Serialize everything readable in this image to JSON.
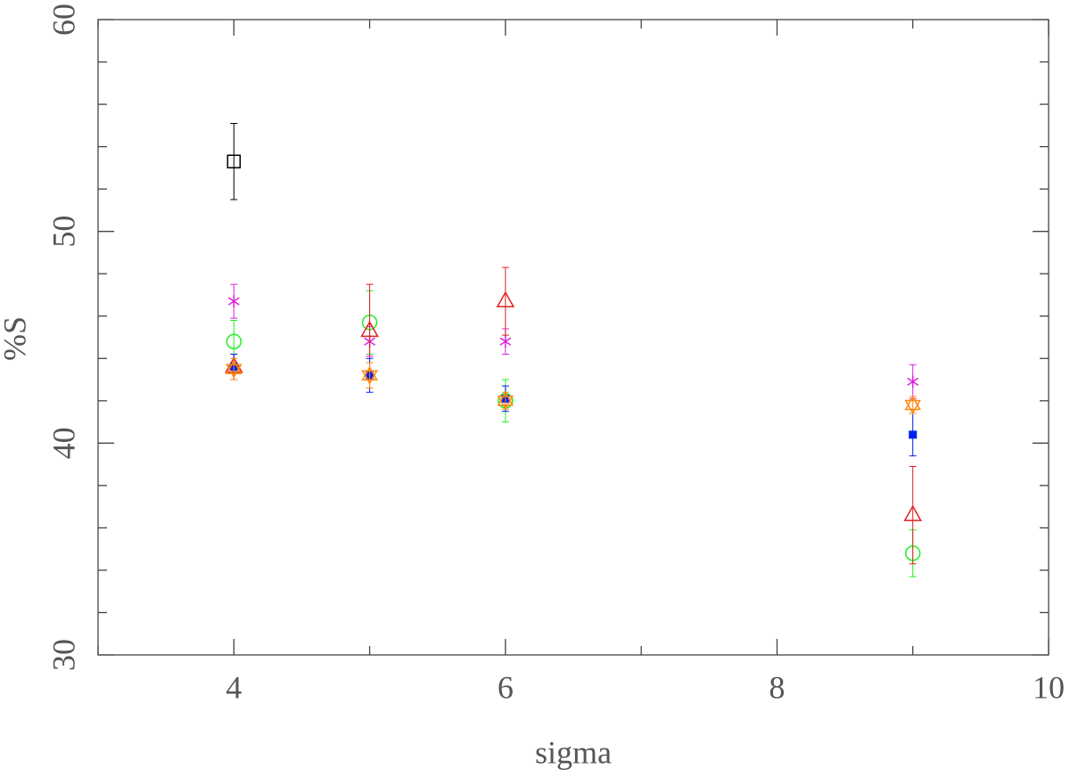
{
  "chart_data": {
    "type": "scatter",
    "x_label": "sigma",
    "y_label": "%S",
    "xlim": [
      3,
      10
    ],
    "xticks": [
      4,
      6,
      8,
      10
    ],
    "xminorticks": [
      3,
      5,
      7,
      9
    ],
    "ylim": [
      30,
      60
    ],
    "yticks": [
      30,
      40,
      50,
      60
    ],
    "yminorticks": [
      32,
      34,
      36,
      38,
      42,
      44,
      46,
      48,
      52,
      54,
      56,
      58
    ],
    "series": [
      {
        "color": "#000000",
        "marker": "open-square",
        "x": [
          4
        ],
        "values": [
          53.3
        ],
        "errors": [
          1.8
        ]
      },
      {
        "color": "#dd22dd",
        "marker": "asterisk",
        "x": [
          4,
          5,
          6,
          9
        ],
        "values": [
          46.7,
          44.8,
          44.8,
          42.9
        ],
        "errors": [
          0.8,
          0.7,
          0.6,
          0.8
        ]
      },
      {
        "color": "#22ee22",
        "marker": "open-circle",
        "x": [
          4,
          5,
          6,
          9
        ],
        "values": [
          44.8,
          45.7,
          42.0,
          34.8
        ],
        "errors": [
          1.0,
          1.5,
          1.0,
          1.1
        ]
      },
      {
        "color": "#dd2222",
        "marker": "open-triangle",
        "x": [
          4,
          5,
          6,
          9
        ],
        "values": [
          43.6,
          45.3,
          46.7,
          36.6
        ],
        "errors": [
          0.6,
          2.2,
          1.6,
          2.3
        ]
      },
      {
        "color": "#0022ee",
        "marker": "filled-square",
        "x": [
          4,
          5,
          6,
          9
        ],
        "values": [
          43.6,
          43.2,
          42.1,
          40.4
        ],
        "errors": [
          0.6,
          0.8,
          0.6,
          1.0
        ]
      },
      {
        "color": "#ff8811",
        "marker": "hexagram",
        "x": [
          4,
          5,
          6,
          9
        ],
        "values": [
          43.5,
          43.2,
          42.0,
          41.8
        ],
        "errors": [
          0.5,
          0.6,
          0.4,
          0.4
        ]
      }
    ]
  }
}
